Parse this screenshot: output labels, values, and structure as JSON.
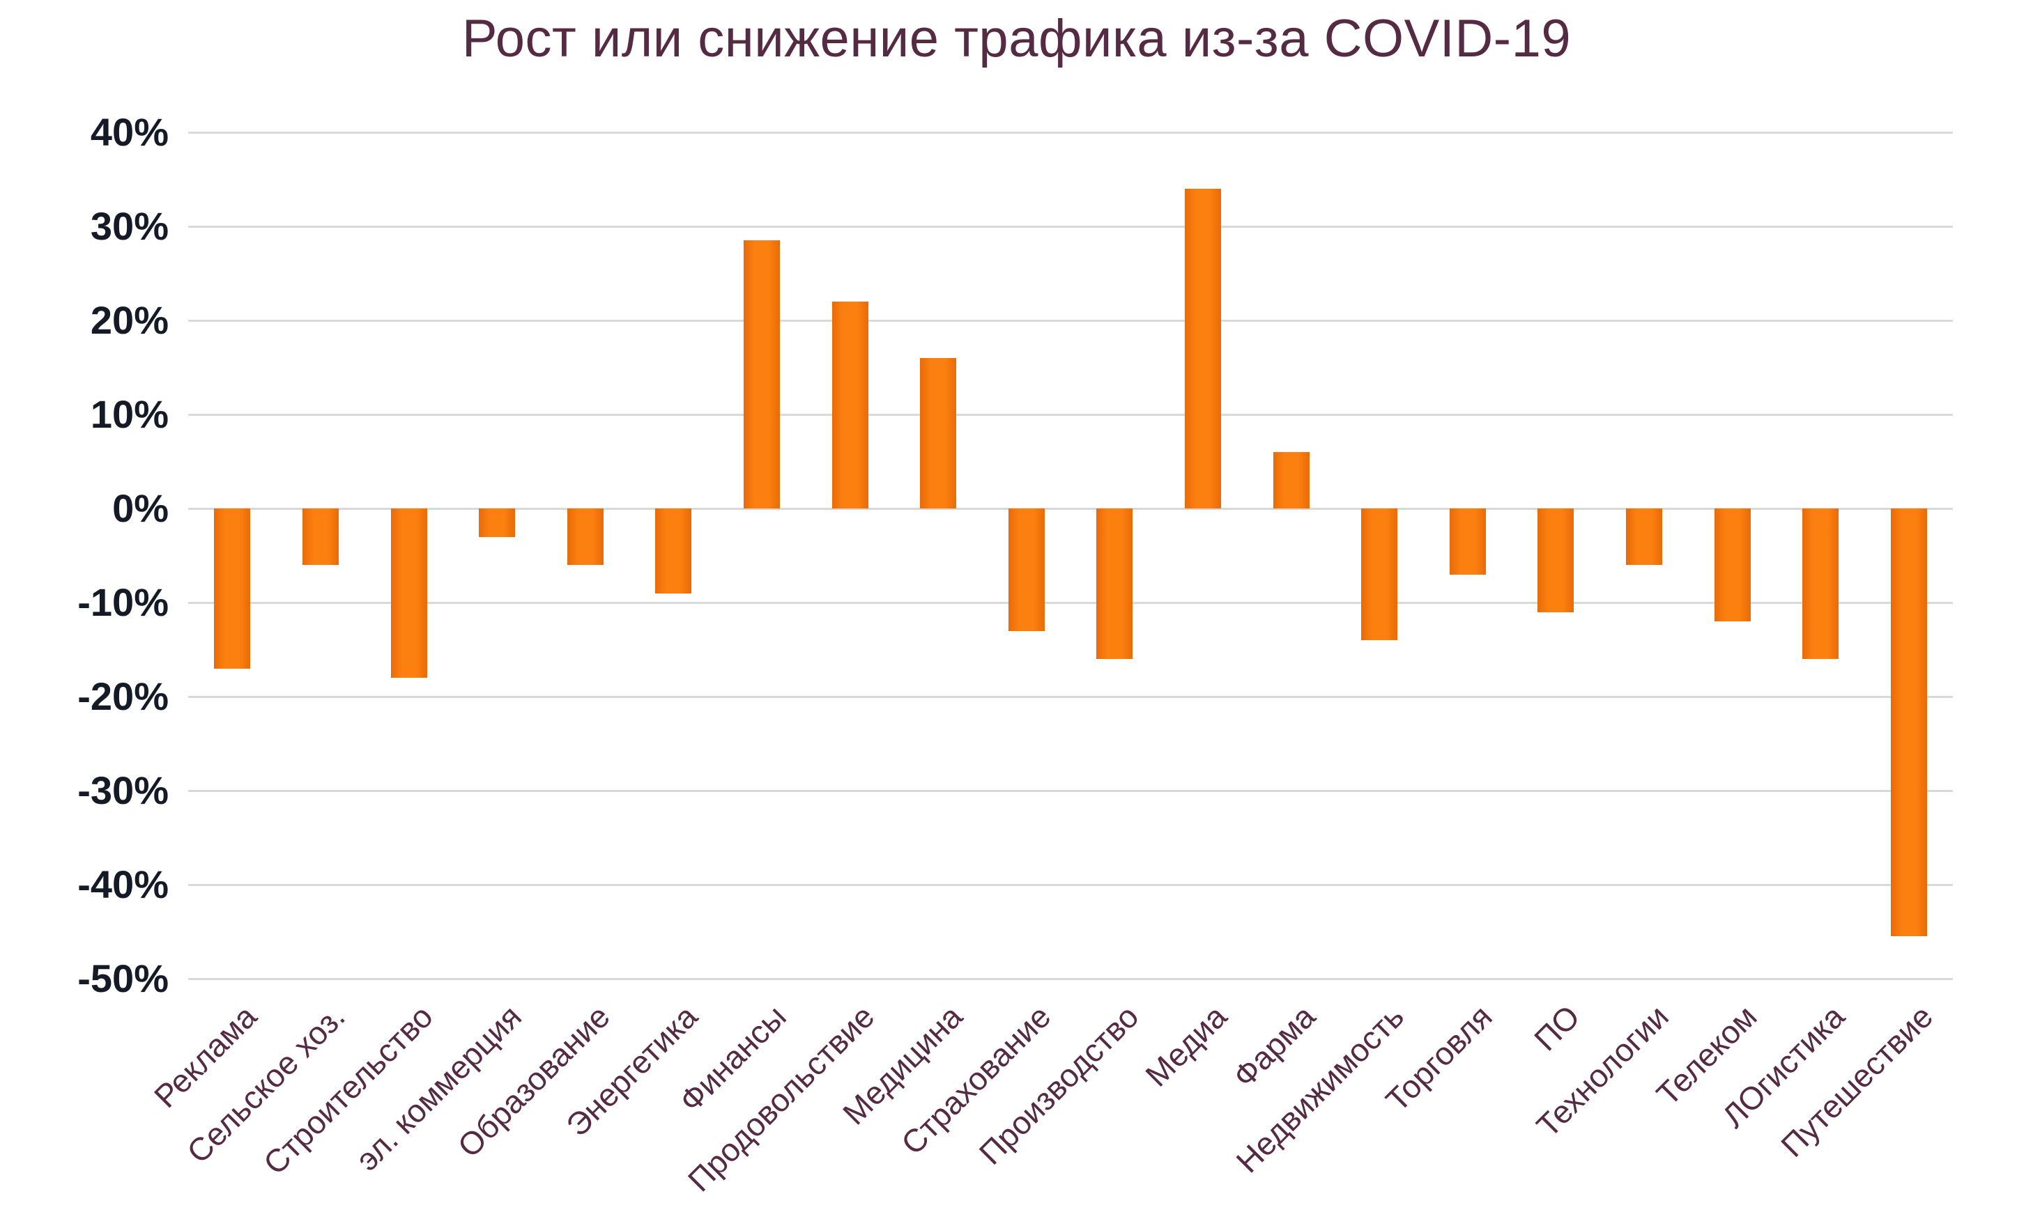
{
  "chart_data": {
    "type": "bar",
    "title": "Рост или снижение трафика из-за COVID-19",
    "categories": [
      "Реклама",
      "Сельское хоз.",
      "Строительство",
      "эл. коммерция",
      "Образование",
      "Энергетика",
      "Финансы",
      "Продовольствие",
      "Медицина",
      "Страхование",
      "Производство",
      "Медиа",
      "Фарма",
      "Недвижимость",
      "Торговля",
      "ПО",
      "Технологии",
      "Телеком",
      "ЛОгистика",
      "Путешествие"
    ],
    "values": [
      -17,
      -6,
      -18,
      -3,
      -6,
      -9,
      28.5,
      22,
      16,
      -13,
      -16,
      34,
      6,
      -14,
      -7,
      -11,
      -6,
      -12,
      -16,
      -45.5
    ],
    "unit": "%",
    "y_ticks": [
      "40%",
      "30%",
      "20%",
      "10%",
      "0%",
      "-10%",
      "-20%",
      "-30%",
      "-40%",
      "-50%"
    ],
    "ylim": [
      -50,
      40
    ],
    "y_step": 10,
    "grid": true,
    "legend_position": "none",
    "x_tick_rotation_deg": 45,
    "colors": {
      "bar_center": "#fb800f",
      "bar_edge": "#ea6a09",
      "gridline": "#d9d9d9",
      "title": "#552a43",
      "x_tick_labels": "#552a43",
      "y_tick_labels": "#141b27",
      "background": "#ffffff"
    }
  }
}
